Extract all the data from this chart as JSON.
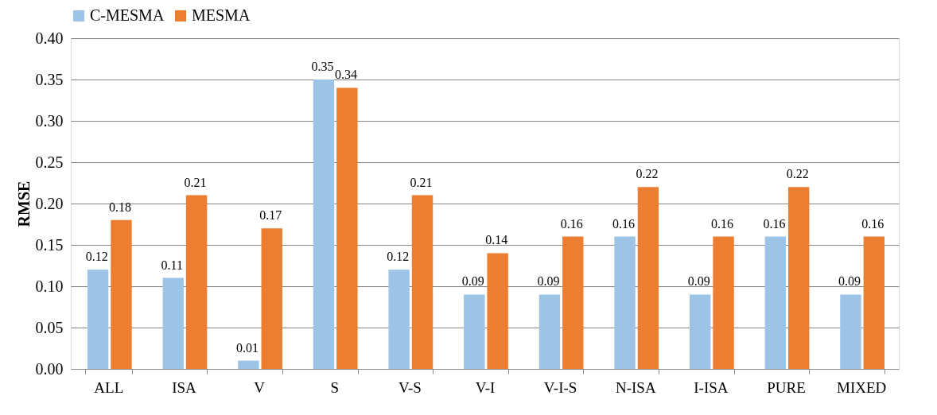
{
  "chart_data": {
    "type": "bar",
    "ylabel": "RMSE",
    "categories": [
      "ALL",
      "ISA",
      "V",
      "S",
      "V-S",
      "V-I",
      "V-I-S",
      "N-ISA",
      "I-ISA",
      "PURE",
      "MIXED"
    ],
    "series": [
      {
        "name": "C-MESMA",
        "color": "#9dc3e6",
        "values": [
          0.12,
          0.11,
          0.01,
          0.35,
          0.12,
          0.09,
          0.09,
          0.16,
          0.09,
          0.16,
          0.09
        ]
      },
      {
        "name": "MESMA",
        "color": "#ed7d31",
        "values": [
          0.18,
          0.21,
          0.17,
          0.34,
          0.21,
          0.14,
          0.16,
          0.22,
          0.16,
          0.22,
          0.16
        ]
      }
    ],
    "ylim": [
      0,
      0.4
    ],
    "yticks": [
      {
        "value": 0,
        "label": "0.00"
      },
      {
        "value": 0.05,
        "label": "0.05"
      },
      {
        "value": 0.1,
        "label": "0.10"
      },
      {
        "value": 0.15,
        "label": "0.15"
      },
      {
        "value": 0.2,
        "label": "0.20"
      },
      {
        "value": 0.25,
        "label": "0.25"
      },
      {
        "value": 0.3,
        "label": "0.30"
      },
      {
        "value": 0.35,
        "label": "0.35"
      },
      {
        "value": 0.4,
        "label": "0.40"
      }
    ],
    "grid": "y",
    "legend": "top",
    "data_labels": true
  }
}
